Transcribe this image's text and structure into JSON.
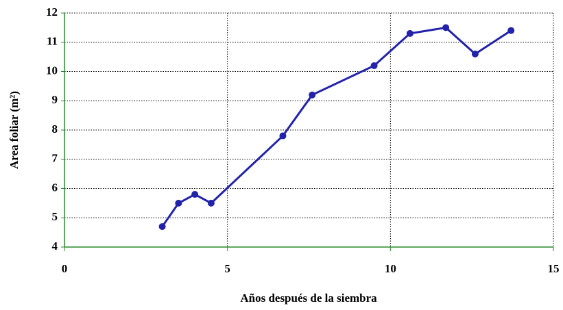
{
  "chart_data": {
    "type": "line",
    "x_label": "Años después de la siembra",
    "y_label": "Area foliar (m²)",
    "x": [
      3.0,
      3.5,
      4.0,
      4.5,
      6.7,
      7.6,
      9.5,
      10.6,
      11.7,
      12.6,
      13.7
    ],
    "series": [
      {
        "name": "Area foliar",
        "color": "#2222aa",
        "values": [
          4.7,
          5.5,
          5.8,
          5.5,
          7.8,
          9.2,
          10.2,
          11.3,
          11.5,
          10.6,
          11.4
        ]
      }
    ],
    "xlim": [
      0,
      15
    ],
    "xticks": [
      0,
      5,
      10,
      15
    ],
    "ylim": [
      4,
      12
    ],
    "yticks": [
      4,
      5,
      6,
      7,
      8,
      9,
      10,
      11,
      12
    ],
    "grid": true
  }
}
